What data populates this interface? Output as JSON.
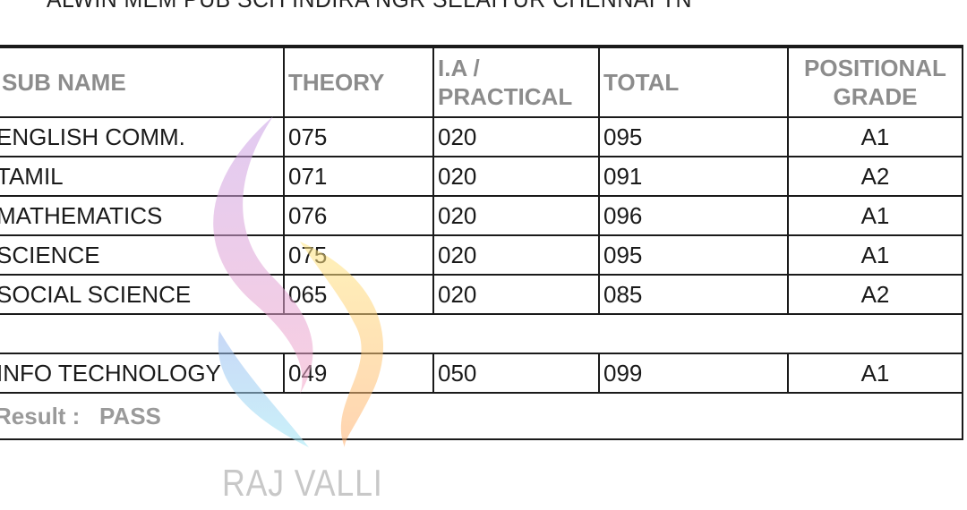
{
  "school_line": "ALWIN MEM PUB SCH INDIRA NGR SELAIYUR CHENNAI TN",
  "headers": {
    "sub_name": "SUB NAME",
    "theory": "THEORY",
    "ia_line1": "I.A /",
    "ia_line2": "PRACTICAL",
    "total": "TOTAL",
    "grade_line1": "POSITIONAL",
    "grade_line2": "GRADE"
  },
  "rows": [
    {
      "subject": "ENGLISH COMM.",
      "theory": "075",
      "practical": "020",
      "total": "095",
      "grade": "A1"
    },
    {
      "subject": "TAMIL",
      "theory": "071",
      "practical": "020",
      "total": "091",
      "grade": "A2"
    },
    {
      "subject": "MATHEMATICS",
      "theory": "076",
      "practical": "020",
      "total": "096",
      "grade": "A1"
    },
    {
      "subject": "SCIENCE",
      "theory": "075",
      "practical": "020",
      "total": "095",
      "grade": "A1"
    },
    {
      "subject": "SOCIAL SCIENCE",
      "theory": "065",
      "practical": "020",
      "total": "085",
      "grade": "A2"
    }
  ],
  "additional": {
    "subject": "INFO TECHNOLOGY",
    "theory": "049",
    "practical": "050",
    "total": "099",
    "grade": "A1"
  },
  "result": {
    "label": "Result :",
    "value": "PASS"
  },
  "watermark": "RAJ VALLI"
}
